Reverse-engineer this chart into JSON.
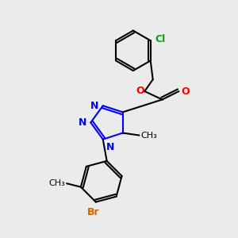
{
  "background_color": "#ebebeb",
  "bond_color": "#000000",
  "bond_width": 1.5,
  "atom_labels": {
    "Cl": {
      "color": "#00aa00",
      "fontsize": 9,
      "fontweight": "bold"
    },
    "O": {
      "color": "#ff0000",
      "fontsize": 9,
      "fontweight": "bold"
    },
    "N": {
      "color": "#0000ff",
      "fontsize": 9,
      "fontweight": "bold"
    },
    "Br": {
      "color": "#cc6600",
      "fontsize": 9,
      "fontweight": "bold"
    }
  },
  "figsize": [
    3.0,
    3.0
  ],
  "dpi": 100
}
